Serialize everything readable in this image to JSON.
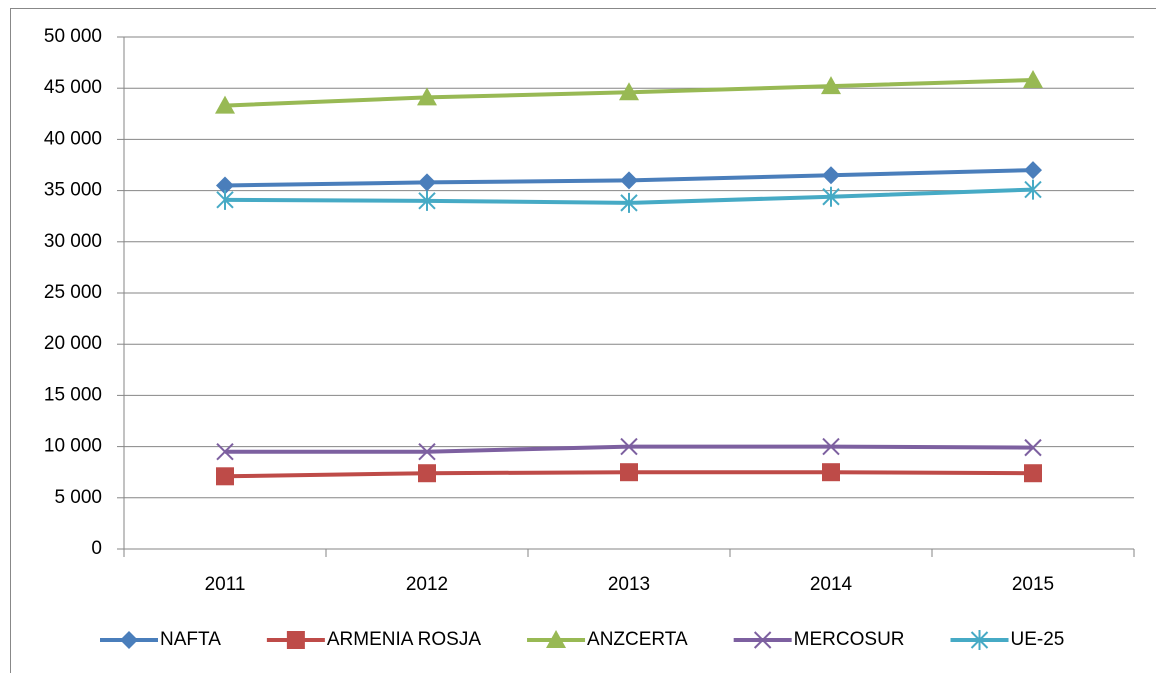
{
  "chart_data": {
    "type": "line",
    "categories": [
      "2011",
      "2012",
      "2013",
      "2014",
      "2015"
    ],
    "series": [
      {
        "name": "NAFTA",
        "color": "#4a7ebb",
        "marker": "diamond",
        "values": [
          35500,
          35800,
          36000,
          36500,
          37000
        ]
      },
      {
        "name": "ARMENIA ROSJA",
        "color": "#be4b48",
        "marker": "square",
        "values": [
          7100,
          7400,
          7500,
          7500,
          7400
        ]
      },
      {
        "name": "ANZCERTA",
        "color": "#98b954",
        "marker": "triangle",
        "values": [
          43300,
          44100,
          44600,
          45200,
          45800
        ]
      },
      {
        "name": "MERCOSUR",
        "color": "#7d60a0",
        "marker": "x",
        "values": [
          9500,
          9500,
          10000,
          10000,
          9900
        ]
      },
      {
        "name": "UE-25",
        "color": "#46aac5",
        "marker": "star",
        "values": [
          34100,
          34000,
          33800,
          34400,
          35100
        ]
      }
    ],
    "ylim": [
      0,
      50000
    ],
    "yticks": [
      0,
      {
        "value": 5000,
        "label": "5 000"
      },
      {
        "value": 10000,
        "label": "10 000"
      },
      {
        "value": 15000,
        "label": "15 000"
      },
      {
        "value": 20000,
        "label": "20 000"
      },
      {
        "value": 25000,
        "label": "25 000"
      },
      {
        "value": 30000,
        "label": "30 000"
      },
      {
        "value": 35000,
        "label": "35 000"
      },
      {
        "value": 40000,
        "label": "40 000"
      },
      {
        "value": 45000,
        "label": "45 000"
      },
      {
        "value": 50000,
        "label": "50 000"
      }
    ],
    "grid": true,
    "legend": "bottom"
  }
}
